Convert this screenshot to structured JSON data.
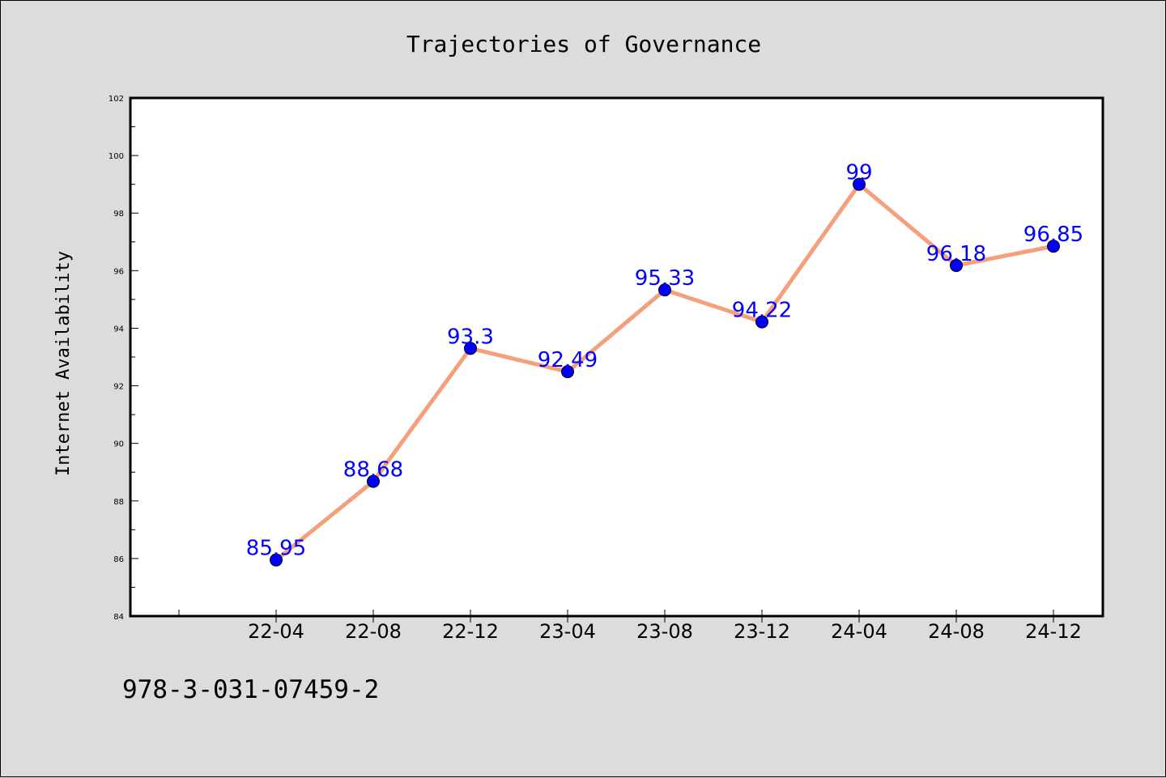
{
  "chart_data": {
    "type": "line",
    "title": "Trajectories of Governance",
    "xlabel": "",
    "ylabel": "Internet Availability",
    "categories": [
      "22-04",
      "22-08",
      "22-12",
      "23-04",
      "23-08",
      "23-12",
      "24-04",
      "24-08",
      "24-12"
    ],
    "series": [
      {
        "values": [
          85.95,
          88.68,
          93.3,
          92.49,
          95.33,
          94.22,
          99,
          96.18,
          96.85
        ]
      }
    ],
    "data_labels": [
      "85.95",
      "88.68",
      "93.3",
      "92.49",
      "95.33",
      "94.22",
      "99",
      "96.18",
      "96.85"
    ],
    "ylim": [
      84,
      102
    ],
    "yticks": [
      "84",
      "86",
      "88",
      "90",
      "92",
      "94",
      "96",
      "98",
      "100",
      "102"
    ],
    "grid": false,
    "legend": "none",
    "colors": {
      "line": "#f4a07c",
      "marker": "#0000ff",
      "data_label": "#0000ff",
      "background": "#dcdcdc",
      "plot_area": "#ffffff"
    }
  },
  "footer": {
    "isbn": "978-3-031-07459-2"
  }
}
